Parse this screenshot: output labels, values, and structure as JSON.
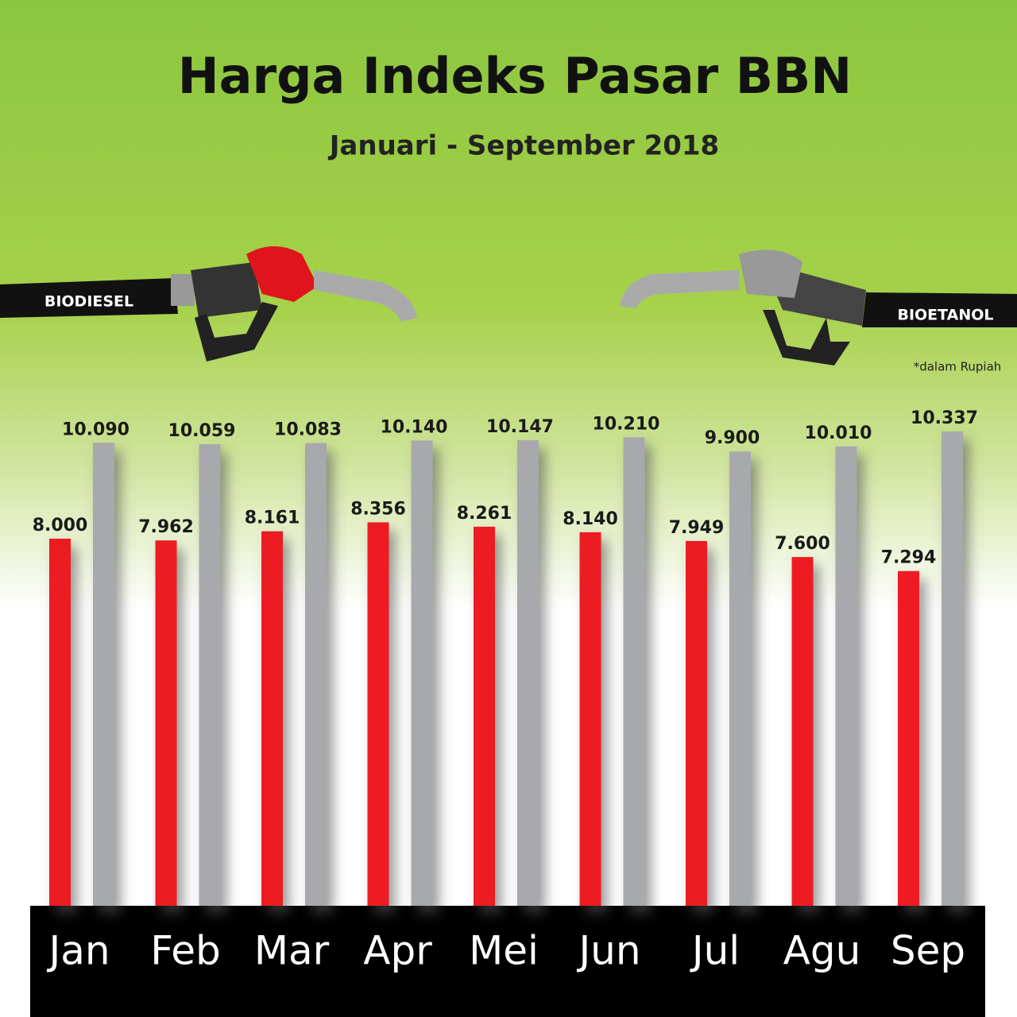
{
  "chart_data": {
    "type": "bar",
    "title": "Harga Indeks Pasar BBN",
    "subtitle": "Januari - September 2018",
    "note": "*dalam Rupiah",
    "categories": [
      "Jan",
      "Feb",
      "Mar",
      "Apr",
      "Mei",
      "Jun",
      "Jul",
      "Agu",
      "Sep"
    ],
    "series": [
      {
        "name": "BIODIESEL",
        "color": "#ec1c24",
        "values": [
          8000,
          7962,
          8161,
          8356,
          8261,
          8140,
          7949,
          7600,
          7294
        ],
        "value_labels": [
          "8.000",
          "7.962",
          "8.161",
          "8.356",
          "8.261",
          "8.140",
          "7.949",
          "7.600",
          "7.294"
        ]
      },
      {
        "name": "BIOETANOL",
        "color": "#a7a9ac",
        "values": [
          10090,
          10059,
          10083,
          10140,
          10147,
          10210,
          9900,
          10010,
          10337
        ],
        "value_labels": [
          "10.090",
          "10.059",
          "10.083",
          "10.140",
          "10.147",
          "10.210",
          "9.900",
          "10.010",
          "10.337"
        ]
      }
    ]
  }
}
